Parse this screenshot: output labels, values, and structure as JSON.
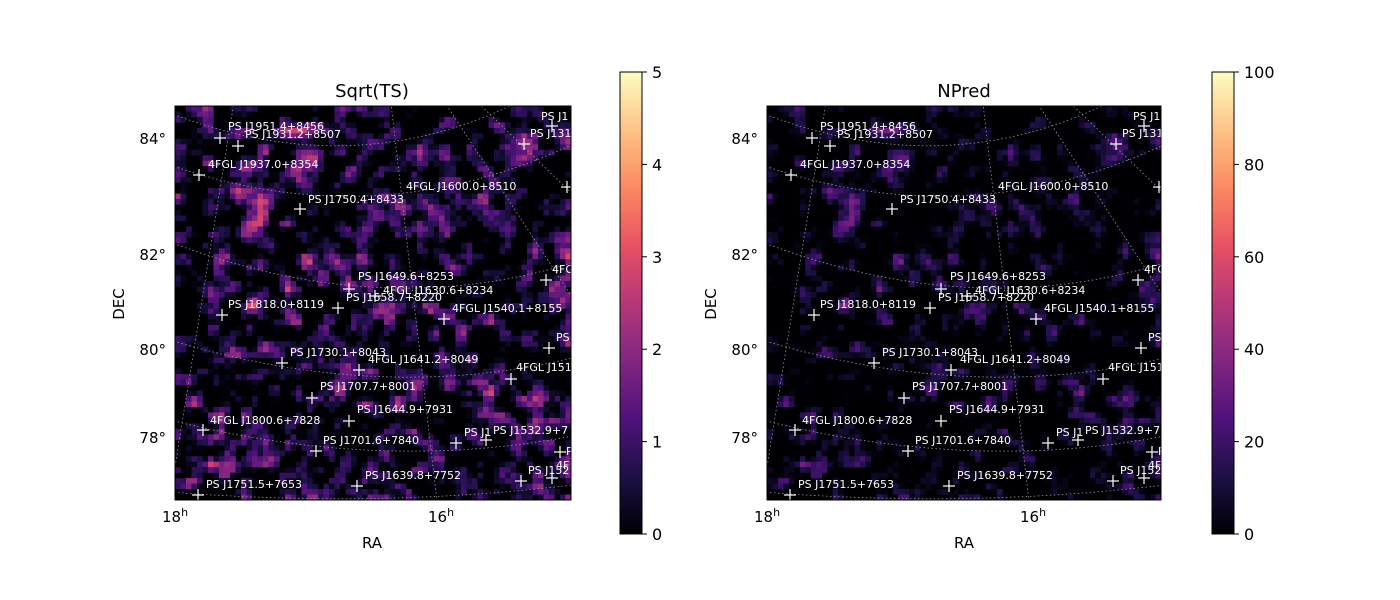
{
  "colors": {
    "colormap": [
      "#000004",
      "#1d1147",
      "#51127c",
      "#822681",
      "#b73779",
      "#e75263",
      "#fc8961",
      "#fec287",
      "#fcfdbf"
    ],
    "marker": "#ffffff",
    "grid": "#9a9a9a"
  },
  "chart_data": [
    {
      "type": "heatmap",
      "title": "Sqrt(TS)",
      "xlabel": "RA",
      "ylabel": "DEC",
      "x_ticks": [
        "18h",
        "16h"
      ],
      "y_ticks": [
        "84°",
        "82°",
        "80°",
        "78°"
      ],
      "colorbar": {
        "range": [
          0,
          5
        ],
        "ticks": [
          "0",
          "1",
          "2",
          "3",
          "4",
          "5"
        ]
      },
      "sources": [
        "PS J1951.4+8456",
        "PS J1931.2+8507",
        "PS J1",
        "PS J131",
        "4FGL J1937.0+8354",
        "4FGL J1600.0+8510",
        "PS J1750.4+8433",
        "PS J1649.6+8253",
        "4FGL J1630.6+8234",
        "PS J1658.7+8220",
        "PS J1818.0+8119",
        "4FGL J1540.1+8155",
        "4FG",
        "PS J1730.1+8043",
        "4FGL J1641.2+8049",
        "4FGL J151",
        "PS",
        "PS J1707.7+8001",
        "4FGL J1800.6+7828",
        "PS J1644.9+7931",
        "PS J1701.6+7840",
        "PS J1",
        "PS J1532.9+7",
        "P",
        "PS J1639.8+7752",
        "PS J1751.5+7653",
        "PS J152",
        "4FI"
      ]
    },
    {
      "type": "heatmap",
      "title": "NPred",
      "xlabel": "RA",
      "ylabel": "DEC",
      "x_ticks": [
        "18h",
        "16h"
      ],
      "y_ticks": [
        "84°",
        "82°",
        "80°",
        "78°"
      ],
      "colorbar": {
        "range": [
          0,
          100
        ],
        "ticks": [
          "0",
          "20",
          "40",
          "60",
          "80",
          "100"
        ]
      },
      "sources": [
        "PS J1951.4+8456",
        "PS J1931.2+8507",
        "PS J1",
        "PS J131",
        "4FGL J1937.0+8354",
        "4FGL J1600.0+8510",
        "PS J1750.4+8433",
        "PS J1649.6+8253",
        "4FGL J1630.6+8234",
        "PS J1658.7+8220",
        "PS J1818.0+8119",
        "4FGL J1540.1+8155",
        "4FG",
        "PS J1730.1+8043",
        "4FGL J1641.2+8049",
        "4FGL J151",
        "PS",
        "PS J1707.7+8001",
        "4FGL J1800.6+7828",
        "PS J1644.9+7931",
        "PS J1701.6+7840",
        "PS J1",
        "PS J1532.9+7",
        "P",
        "PS J1639.8+7752",
        "PS J1751.5+7653",
        "PS J152",
        "4FI"
      ]
    }
  ]
}
